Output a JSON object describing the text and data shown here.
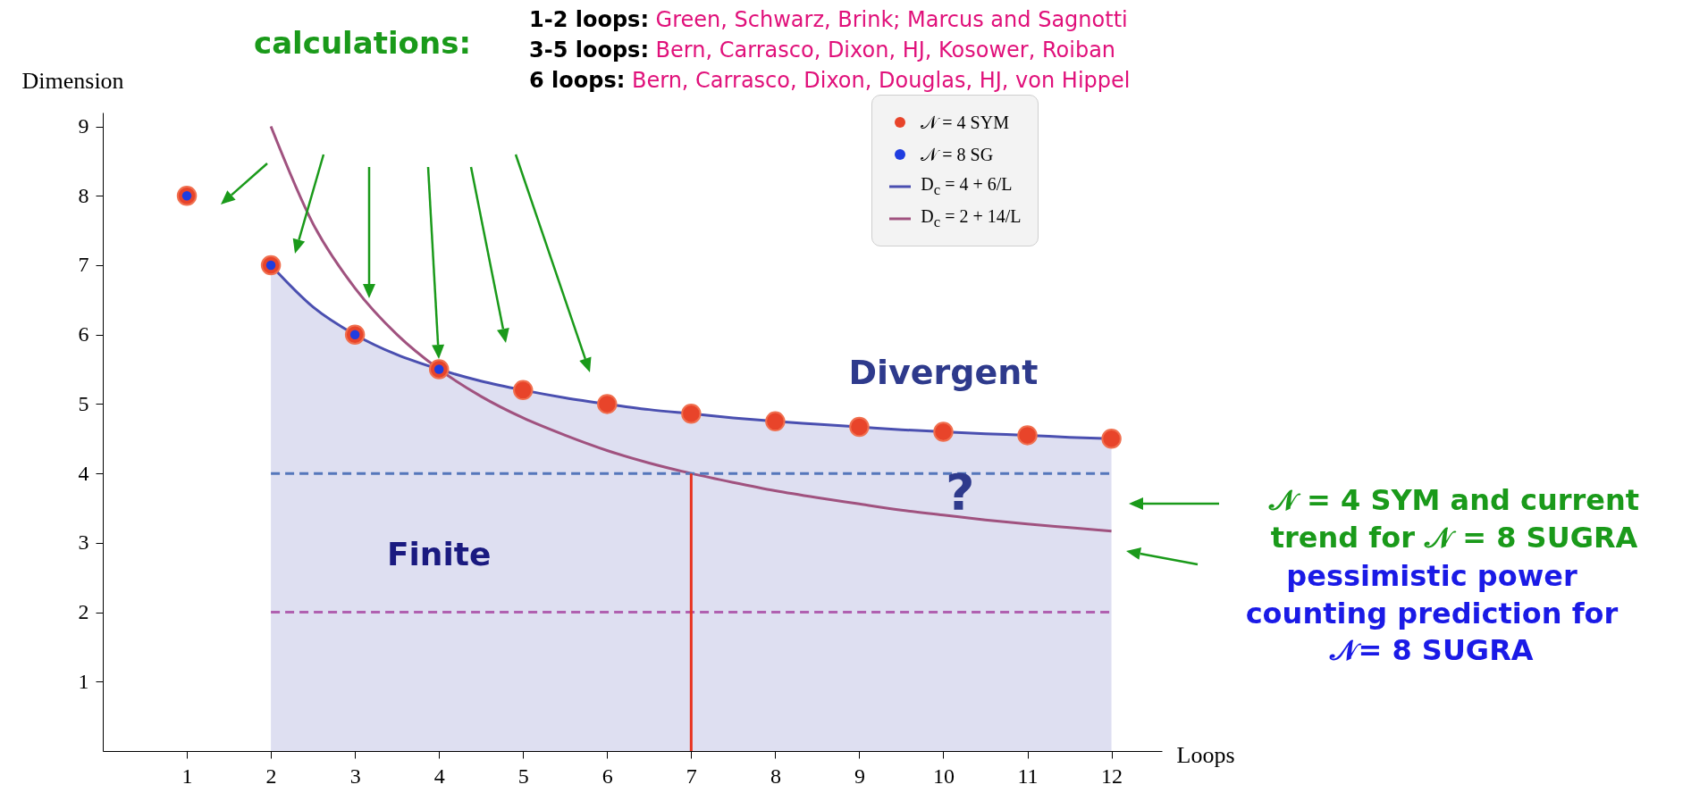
{
  "chart_data": {
    "type": "scatter",
    "xlabel": "Loops",
    "ylabel": "Dimension",
    "x": [
      1,
      2,
      3,
      4,
      5,
      6,
      7,
      8,
      9,
      10,
      11,
      12
    ],
    "xlim": [
      0,
      12.6
    ],
    "ylim": [
      0,
      9.2
    ],
    "xticks": [
      1,
      2,
      3,
      4,
      5,
      6,
      7,
      8,
      9,
      10,
      11,
      12
    ],
    "yticks": [
      1,
      2,
      3,
      4,
      5,
      6,
      7,
      8,
      9
    ],
    "grid": false,
    "legend": "top right",
    "series": [
      {
        "name": "𝒩 = 4 SYM",
        "color": "#e8442a",
        "values": [
          8,
          7,
          6,
          5.5,
          5.2,
          5,
          4.86,
          4.75,
          4.67,
          4.6,
          4.55,
          4.5
        ]
      },
      {
        "name": "𝒩 = 8 SG",
        "color": "#1f3de0",
        "x": [
          1,
          2,
          3,
          4
        ],
        "values": [
          8,
          7,
          6,
          5.5
        ]
      },
      {
        "name": "D$_{c}$ = 4 + 6/L",
        "type": "area",
        "color": "#4a4fb0",
        "x": [
          2,
          2.5,
          3,
          3.5,
          4,
          4.5,
          5,
          5.5,
          6,
          6.5,
          7,
          7.5,
          8,
          8.5,
          9,
          9.5,
          10,
          10.5,
          11,
          11.5,
          12
        ],
        "values": [
          7,
          6.4,
          6,
          5.71,
          5.5,
          5.33,
          5.2,
          5.09,
          5,
          4.92,
          4.86,
          4.8,
          4.75,
          4.71,
          4.67,
          4.63,
          4.6,
          4.57,
          4.55,
          4.52,
          4.5
        ]
      },
      {
        "name": "D$_{c}$ = 2 + 14/L",
        "type": "line",
        "color": "#a0527f",
        "x": [
          2,
          2.5,
          3,
          3.5,
          4,
          4.5,
          5,
          5.5,
          6,
          6.5,
          7,
          7.5,
          8,
          8.5,
          9,
          9.5,
          10,
          10.5,
          11,
          11.5,
          12
        ],
        "values": [
          9,
          7.6,
          6.67,
          6,
          5.5,
          5.11,
          4.8,
          4.55,
          4.33,
          4.15,
          4,
          3.87,
          3.75,
          3.65,
          3.56,
          3.47,
          3.4,
          3.33,
          3.27,
          3.22,
          3.17
        ]
      },
      {
        "type": "line",
        "color": "#5577bb",
        "line_style": "dashed",
        "x": [
          2,
          12
        ],
        "values": [
          4,
          4
        ]
      },
      {
        "type": "line",
        "color": "#b060b0",
        "line_style": "dashed",
        "x": [
          2,
          12
        ],
        "values": [
          2,
          2
        ]
      },
      {
        "type": "line",
        "color": "#e8321e",
        "x": [
          7,
          7
        ],
        "values": [
          0,
          4
        ]
      }
    ],
    "annotations": [
      "calculations:",
      "1-2 loops: Green, Schwarz, Brink; Marcus and Sagnotti",
      "3-5 loops: Bern, Carrasco, Dixon, HJ, Kosower, Roiban",
      "6 loops: Bern, Carrasco, Dixon, Douglas, HJ, von Hippel",
      "𝒩 = 4 SYM and current trend for 𝒩 = 8 SUGRA",
      "pessimistic power counting prediction for 𝒩= 8 SUGRA",
      "Divergent",
      "Finite",
      "?"
    ]
  }
}
